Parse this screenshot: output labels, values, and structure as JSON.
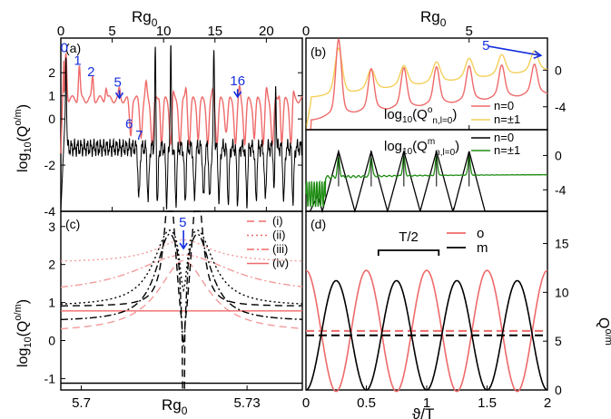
{
  "colors": {
    "red": "#ef6a6a",
    "pale_red": "#f39b9b",
    "yellow": "#f4cf5a",
    "green": "#1e8c12",
    "black": "#000000",
    "blue": "#1530e0"
  },
  "labels": {
    "top_rg": "Rg",
    "top_rg_sub": "0",
    "bot_rg": "Rg",
    "bot_rg_sub": "0",
    "xlabel_d": "ϑ/T",
    "ylabel_a": "log",
    "ylabel_a_sub": "10",
    "ylabel_a_tail": "(Q",
    "ylabel_a_sup": "o/m",
    "ylabel_a_close": ")",
    "ylabel_d": "Q",
    "ylabel_d_sup": "o/m"
  },
  "chart_data": [
    {
      "panel": "(a)",
      "type": "line",
      "xlabel": "Rg0",
      "ylabel": "log10(Q o/m)",
      "xlim": [
        0,
        23.5
      ],
      "ylim": [
        -4,
        3.5
      ],
      "xticks": [
        0,
        5,
        10,
        15,
        20
      ],
      "yticks": [
        -4,
        -2,
        0,
        1,
        2
      ],
      "annotations": [
        {
          "text": "0",
          "x": 0.5,
          "y": 2.9
        },
        {
          "text": "1",
          "x": 1.8,
          "y": 2.35
        },
        {
          "text": "2",
          "x": 3.1,
          "y": 1.85
        },
        {
          "text": "5",
          "x": 5.7,
          "y": 1.4
        },
        {
          "text": "6",
          "x": 6.8,
          "y": -0.4
        },
        {
          "text": "7",
          "x": 7.8,
          "y": -0.9
        },
        {
          "text": "16",
          "x": 17.0,
          "y": 1.45
        }
      ],
      "series": [
        {
          "color": "red",
          "baseline": 0.85,
          "peak_max": 2.9
        },
        {
          "color": "black",
          "baseline": -1.3,
          "peak_max": 3.1
        }
      ]
    },
    {
      "panel": "(b)",
      "type": "line",
      "xlabel": "Rg0",
      "xlim": [
        0,
        7.4
      ],
      "ylim": [
        -6.5,
        3.5
      ],
      "xticks": [
        0,
        5
      ],
      "yticks": [
        -4,
        0
      ],
      "title": "log10(Q o n,l=0)",
      "annotation": {
        "text": "5",
        "x": 5.5,
        "y": 1.5
      },
      "series": [
        {
          "name": "n=0",
          "color": "red",
          "peaks": [
            1.0,
            2.0,
            3.0,
            4.0,
            5.0,
            6.0,
            7.0
          ]
        },
        {
          "name": "n=±1",
          "color": "yellow",
          "peaks": [
            1.0,
            2.0,
            3.0,
            4.0,
            5.0,
            6.0,
            7.0
          ]
        }
      ]
    },
    {
      "panel": "(b) lower",
      "type": "line",
      "xlim": [
        0,
        7.4
      ],
      "ylim": [
        -6.5,
        3
      ],
      "yticks": [
        -4,
        0
      ],
      "title": "log10(Q m n,l=0)",
      "series": [
        {
          "name": "n=0",
          "color": "black",
          "peaks": [
            1.0,
            2.0,
            3.0,
            4.0,
            5.0
          ]
        },
        {
          "name": "n=±1",
          "color": "green",
          "peaks": [
            1.0,
            2.0,
            3.0,
            4.0,
            5.0
          ]
        }
      ]
    },
    {
      "panel": "(c)",
      "type": "line",
      "xlabel": "Rg0",
      "ylabel": "log10(Q o/m)",
      "xlim": [
        5.6963,
        5.74
      ],
      "ylim": [
        -1.3,
        3.4
      ],
      "xticks": [
        5.7,
        5.73
      ],
      "yticks": [
        -1,
        0,
        1,
        2,
        3
      ],
      "annotation": {
        "text": "5",
        "x": 5.7185,
        "y": 3.0
      },
      "legend": [
        "(i)",
        "(ii)",
        "(iii)",
        "(iv)"
      ]
    },
    {
      "panel": "(d)",
      "type": "line",
      "xlabel": "ϑ/T",
      "ylabel": "Q o/m",
      "xlim": [
        0,
        2
      ],
      "ylim": [
        0,
        18.3
      ],
      "xticks": [
        0,
        0.5,
        1,
        1.5,
        2
      ],
      "yticks": [
        0,
        5,
        10,
        15
      ],
      "annotation": "T/2",
      "series": [
        {
          "name": "o",
          "color": "red",
          "mean": 6.05,
          "amplitude": 6.2,
          "period": 0.5
        },
        {
          "name": "m",
          "color": "black",
          "mean": 5.6,
          "amplitude": 5.6,
          "period": 0.5
        }
      ],
      "legend": [
        "o",
        "m"
      ]
    }
  ]
}
